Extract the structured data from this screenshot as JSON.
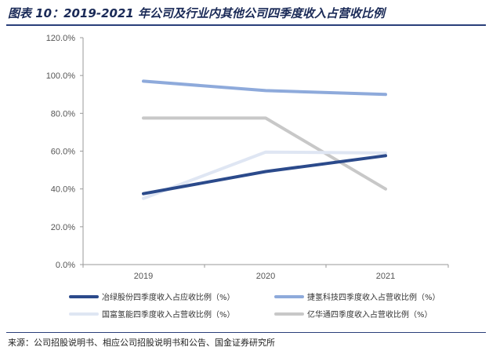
{
  "figure": {
    "title": "图表 10：2019-2021 年公司及行业内其他公司四季度收入占营收比例",
    "source": "来源：公司招股说明书、相应公司招股说明书和公告、国金证券研究所"
  },
  "chart_data": {
    "type": "line",
    "title": "",
    "xlabel": "",
    "ylabel": "",
    "categories": [
      "2019",
      "2020",
      "2021"
    ],
    "ylim": [
      0,
      120
    ],
    "y_ticks": [
      "0.0%",
      "20.0%",
      "40.0%",
      "60.0%",
      "80.0%",
      "100.0%",
      "120.0%"
    ],
    "y_tick_values": [
      0,
      20,
      40,
      60,
      80,
      100,
      120
    ],
    "grid": false,
    "legend_position": "bottom",
    "series": [
      {
        "name": "冶绿股份四季度收入占应收比例（%）",
        "values": [
          37.5,
          49.2,
          57.6
        ],
        "color": "#2b4a8b"
      },
      {
        "name": "捷氢科技四季度收入占营收比例（%）",
        "values": [
          97.0,
          92.0,
          90.0
        ],
        "color": "#8eaadb"
      },
      {
        "name": "国富氢能四季度收入占营收比例（%）",
        "values": [
          35.0,
          59.5,
          59.0
        ],
        "color": "#dfe6f3"
      },
      {
        "name": "亿华通四季度收入占营收比例（%）",
        "values": [
          77.5,
          77.5,
          40.0
        ],
        "color": "#c8c8c8"
      }
    ]
  }
}
